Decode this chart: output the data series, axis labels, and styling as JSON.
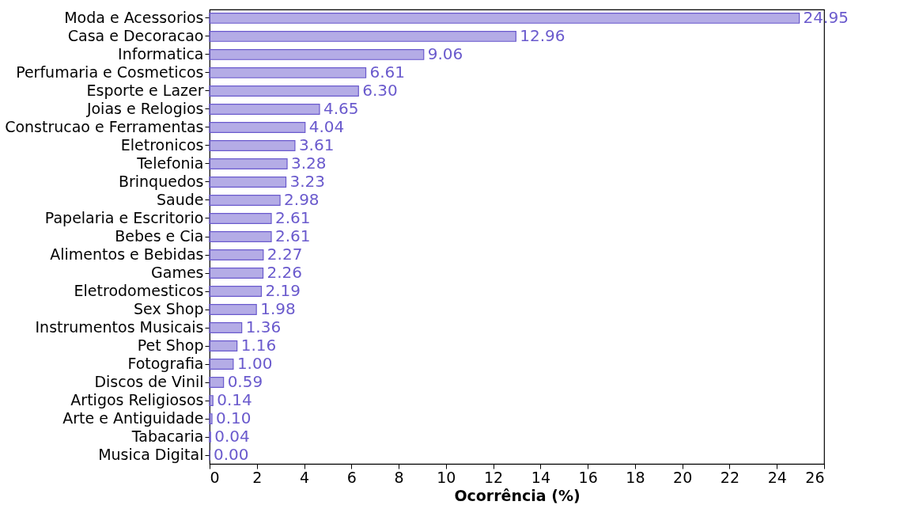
{
  "chart_data": {
    "type": "bar",
    "orientation": "horizontal",
    "xlabel": "Ocorrência (%)",
    "categories": [
      "Moda e Acessorios",
      "Casa e Decoracao",
      "Informatica",
      "Perfumaria e Cosmeticos",
      "Esporte e Lazer",
      "Joias e Relogios",
      "Construcao e Ferramentas",
      "Eletronicos",
      "Telefonia",
      "Brinquedos",
      "Saude",
      "Papelaria e Escritorio",
      "Bebes e Cia",
      "Alimentos e Bebidas",
      "Games",
      "Eletrodomesticos",
      "Sex Shop",
      "Instrumentos Musicais",
      "Pet Shop",
      "Fotografia",
      "Discos de Vinil",
      "Artigos Religiosos",
      "Arte e Antiguidade",
      "Tabacaria",
      "Musica Digital"
    ],
    "values": [
      24.95,
      12.96,
      9.06,
      6.61,
      6.3,
      4.65,
      4.04,
      3.61,
      3.28,
      3.23,
      2.98,
      2.61,
      2.61,
      2.27,
      2.26,
      2.19,
      1.98,
      1.36,
      1.16,
      1.0,
      0.59,
      0.14,
      0.1,
      0.04,
      0.0
    ],
    "value_labels": [
      "24.95",
      "12.96",
      "9.06",
      "6.61",
      "6.30",
      "4.65",
      "4.04",
      "3.61",
      "3.28",
      "3.23",
      "2.98",
      "2.61",
      "2.61",
      "2.27",
      "2.26",
      "2.19",
      "1.98",
      "1.36",
      "1.16",
      "1.00",
      "0.59",
      "0.14",
      "0.10",
      "0.04",
      "0.00"
    ],
    "color": "#6a5acd",
    "xlim": [
      0,
      26
    ],
    "xticks": [
      0,
      2,
      4,
      6,
      8,
      10,
      12,
      14,
      16,
      18,
      20,
      22,
      24,
      26
    ]
  }
}
